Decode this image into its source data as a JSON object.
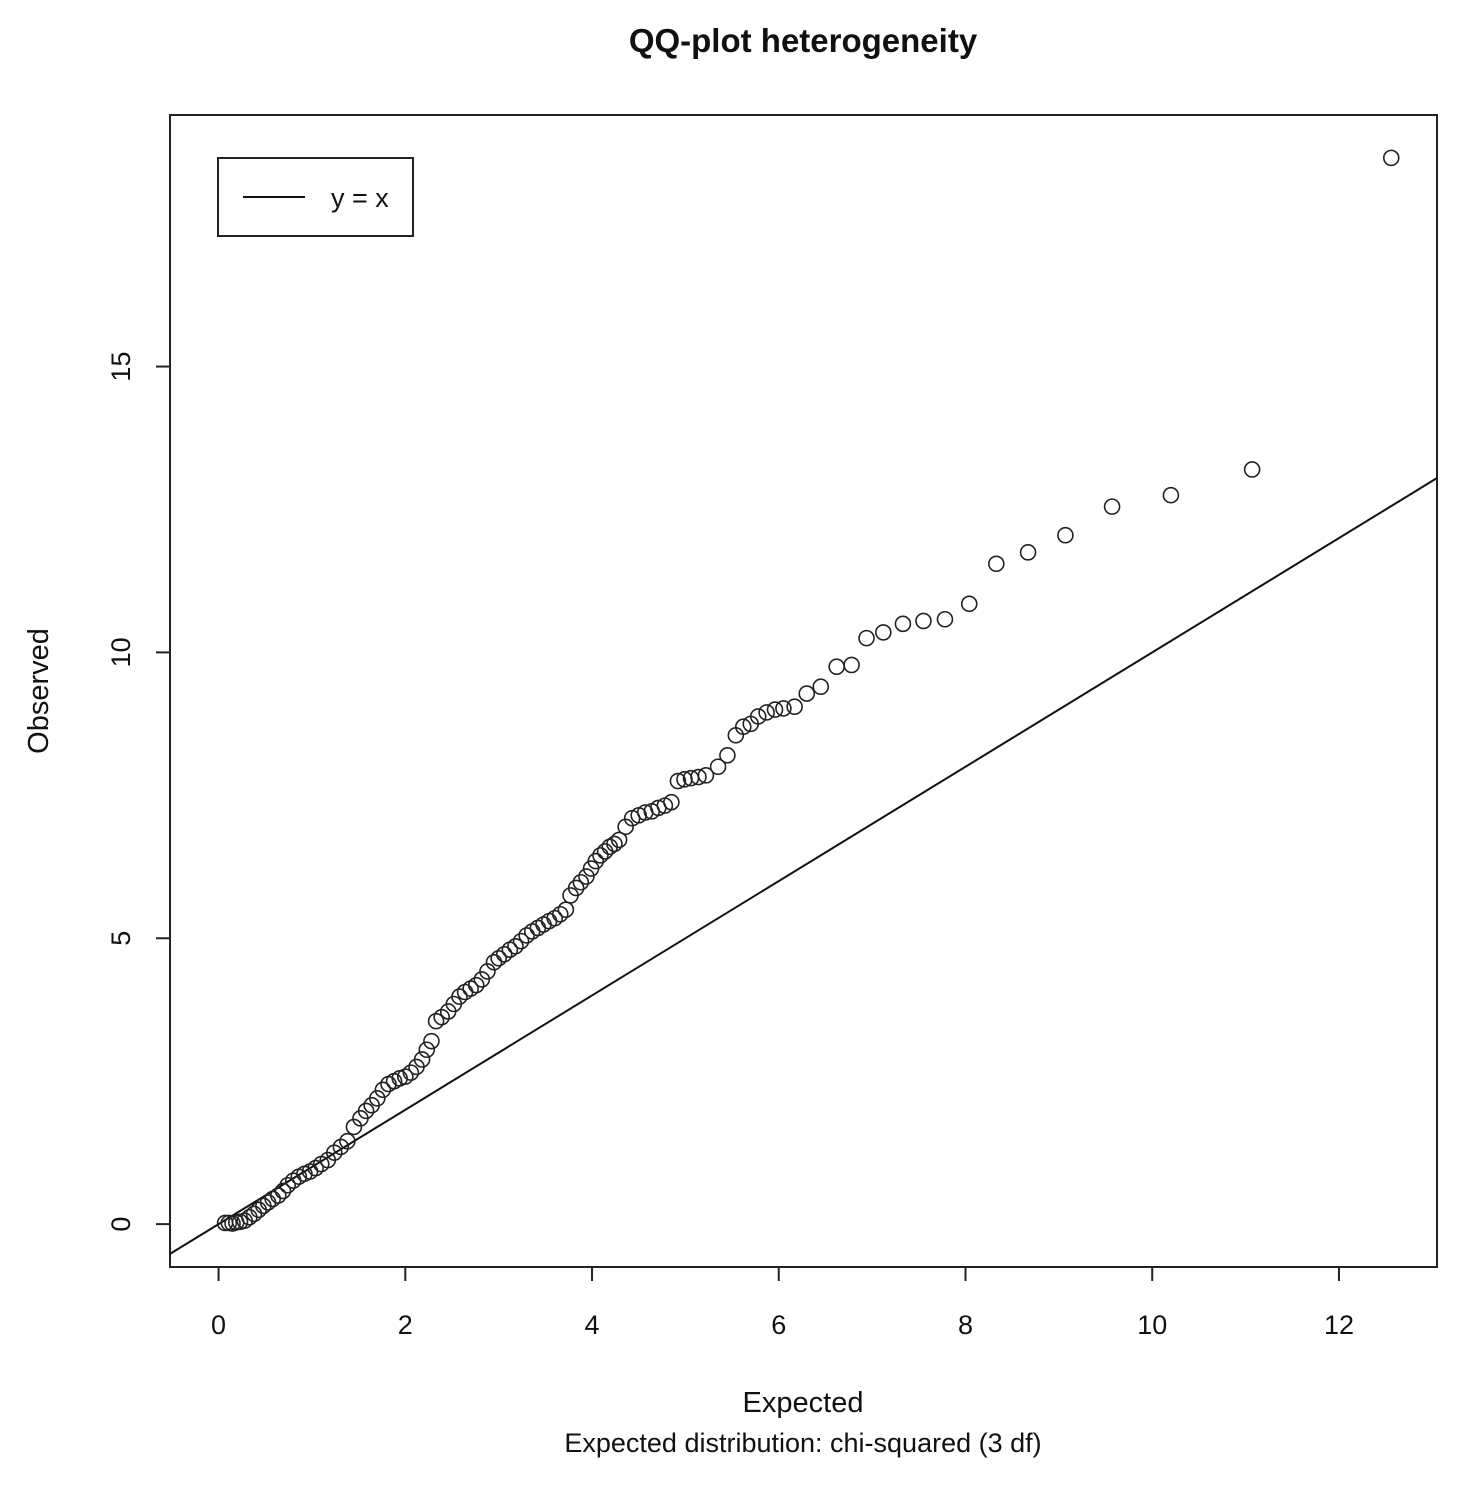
{
  "chart_data": {
    "type": "scatter",
    "title": "QQ-plot heterogeneity",
    "xlabel": "Expected",
    "ylabel": "Observed",
    "subtitle": "Expected distribution: chi-squared (3 df)",
    "xlim": [
      -0.52,
      13.05
    ],
    "ylim": [
      -0.75,
      19.4
    ],
    "xticks": [
      0,
      2,
      4,
      6,
      8,
      10,
      12
    ],
    "yticks": [
      0,
      5,
      10,
      15
    ],
    "legend": {
      "position": "top-left",
      "entries": [
        {
          "label": "y = x",
          "style": "line"
        }
      ]
    },
    "reference_line": {
      "label": "y = x",
      "slope": 1,
      "intercept": 0
    },
    "series": [
      {
        "name": "Observed quantiles",
        "marker": "open-circle",
        "points": [
          [
            0.07,
            0.02
          ],
          [
            0.11,
            0.02
          ],
          [
            0.15,
            0.01
          ],
          [
            0.19,
            0.03
          ],
          [
            0.23,
            0.04
          ],
          [
            0.28,
            0.06
          ],
          [
            0.33,
            0.12
          ],
          [
            0.38,
            0.18
          ],
          [
            0.43,
            0.25
          ],
          [
            0.48,
            0.32
          ],
          [
            0.53,
            0.38
          ],
          [
            0.58,
            0.44
          ],
          [
            0.64,
            0.5
          ],
          [
            0.69,
            0.58
          ],
          [
            0.74,
            0.68
          ],
          [
            0.8,
            0.76
          ],
          [
            0.86,
            0.83
          ],
          [
            0.92,
            0.88
          ],
          [
            0.98,
            0.92
          ],
          [
            1.04,
            0.98
          ],
          [
            1.1,
            1.05
          ],
          [
            1.17,
            1.12
          ],
          [
            1.24,
            1.25
          ],
          [
            1.31,
            1.35
          ],
          [
            1.38,
            1.45
          ],
          [
            1.45,
            1.7
          ],
          [
            1.52,
            1.85
          ],
          [
            1.58,
            1.98
          ],
          [
            1.64,
            2.08
          ],
          [
            1.7,
            2.2
          ],
          [
            1.76,
            2.35
          ],
          [
            1.82,
            2.45
          ],
          [
            1.88,
            2.5
          ],
          [
            1.94,
            2.55
          ],
          [
            2.0,
            2.58
          ],
          [
            2.06,
            2.65
          ],
          [
            2.12,
            2.75
          ],
          [
            2.18,
            2.88
          ],
          [
            2.23,
            3.05
          ],
          [
            2.28,
            3.2
          ],
          [
            2.33,
            3.55
          ],
          [
            2.39,
            3.62
          ],
          [
            2.46,
            3.72
          ],
          [
            2.52,
            3.85
          ],
          [
            2.58,
            3.98
          ],
          [
            2.64,
            4.06
          ],
          [
            2.7,
            4.12
          ],
          [
            2.76,
            4.18
          ],
          [
            2.82,
            4.28
          ],
          [
            2.88,
            4.42
          ],
          [
            2.95,
            4.58
          ],
          [
            3.0,
            4.65
          ],
          [
            3.06,
            4.72
          ],
          [
            3.12,
            4.8
          ],
          [
            3.18,
            4.86
          ],
          [
            3.24,
            4.95
          ],
          [
            3.3,
            5.05
          ],
          [
            3.36,
            5.12
          ],
          [
            3.42,
            5.18
          ],
          [
            3.48,
            5.24
          ],
          [
            3.54,
            5.3
          ],
          [
            3.6,
            5.35
          ],
          [
            3.66,
            5.42
          ],
          [
            3.72,
            5.5
          ],
          [
            3.77,
            5.75
          ],
          [
            3.83,
            5.88
          ],
          [
            3.88,
            5.98
          ],
          [
            3.94,
            6.08
          ],
          [
            3.99,
            6.22
          ],
          [
            4.04,
            6.35
          ],
          [
            4.09,
            6.45
          ],
          [
            4.14,
            6.52
          ],
          [
            4.19,
            6.6
          ],
          [
            4.24,
            6.65
          ],
          [
            4.29,
            6.72
          ],
          [
            4.36,
            6.95
          ],
          [
            4.43,
            7.1
          ],
          [
            4.5,
            7.15
          ],
          [
            4.57,
            7.2
          ],
          [
            4.64,
            7.22
          ],
          [
            4.71,
            7.28
          ],
          [
            4.78,
            7.32
          ],
          [
            4.85,
            7.38
          ],
          [
            4.92,
            7.75
          ],
          [
            4.99,
            7.78
          ],
          [
            5.06,
            7.8
          ],
          [
            5.14,
            7.82
          ],
          [
            5.22,
            7.85
          ],
          [
            5.35,
            8.0
          ],
          [
            5.45,
            8.2
          ],
          [
            5.54,
            8.55
          ],
          [
            5.62,
            8.7
          ],
          [
            5.7,
            8.75
          ],
          [
            5.78,
            8.88
          ],
          [
            5.87,
            8.95
          ],
          [
            5.96,
            9.0
          ],
          [
            6.05,
            9.02
          ],
          [
            6.17,
            9.05
          ],
          [
            6.3,
            9.28
          ],
          [
            6.45,
            9.4
          ],
          [
            6.62,
            9.75
          ],
          [
            6.78,
            9.78
          ],
          [
            6.94,
            10.25
          ],
          [
            7.12,
            10.35
          ],
          [
            7.33,
            10.5
          ],
          [
            7.55,
            10.55
          ],
          [
            7.78,
            10.58
          ],
          [
            8.04,
            10.85
          ],
          [
            8.33,
            11.55
          ],
          [
            8.67,
            11.75
          ],
          [
            9.07,
            12.05
          ],
          [
            9.57,
            12.55
          ],
          [
            10.2,
            12.75
          ],
          [
            11.07,
            13.2
          ],
          [
            12.56,
            18.65
          ]
        ]
      }
    ]
  }
}
